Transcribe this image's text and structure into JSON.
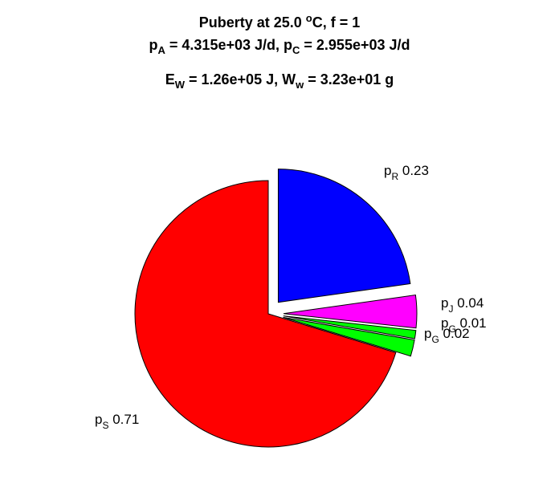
{
  "title": {
    "line1_a": "Puberty at 25.0 ",
    "line1_sup": "o",
    "line1_b": "C, f = 1",
    "line2_p": "p",
    "line2_sub1": "A",
    "line2_mid": " = 4.315e+03 J/d,  p",
    "line2_sub2": "C",
    "line2_end": " = 2.955e+03 J/d",
    "line3_e": "E",
    "line3_sub1": "W",
    "line3_mid": " = 1.26e+05 J, W",
    "line3_sub2": "w",
    "line3_end": " = 3.23e+01 g"
  },
  "chart_data": {
    "type": "pie",
    "start_direction": "top",
    "direction": "clockwise",
    "slices": [
      {
        "name": "p",
        "subscript": "R",
        "value": 0.23,
        "label": "0.23",
        "color": "#0000ff",
        "exploded": true
      },
      {
        "name": "p",
        "subscript": "J",
        "value": 0.04,
        "label": "0.04",
        "color": "#ff00ff",
        "exploded": true
      },
      {
        "name": "p",
        "subscript": "G",
        "value": 0.01,
        "label": "0.01",
        "color": "#00ff00",
        "exploded": true
      },
      {
        "name": "p",
        "subscript": "G",
        "value": 0.02,
        "label": "0.02",
        "color": "#00ff00",
        "exploded": true
      },
      {
        "name": "p",
        "subscript": "S",
        "value": 0.71,
        "label": "0.71",
        "color": "#ff0000",
        "exploded": false
      }
    ]
  }
}
